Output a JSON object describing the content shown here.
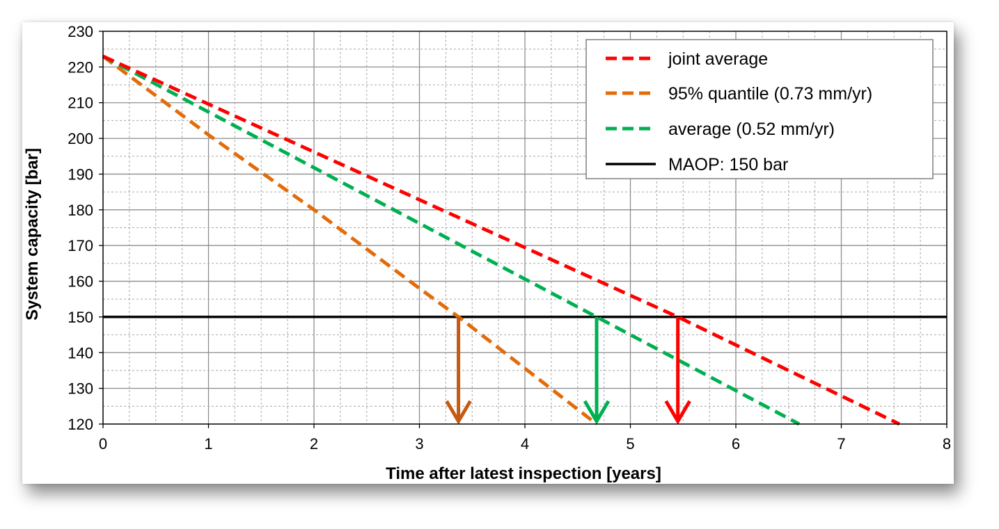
{
  "chart_data": {
    "type": "line",
    "xlabel": "Time after latest inspection [years]",
    "ylabel": "System capacity [bar]",
    "xlim": [
      0,
      8
    ],
    "ylim": [
      120,
      230
    ],
    "x_ticks": [
      "0",
      "1",
      "2",
      "3",
      "4",
      "5",
      "6",
      "7",
      "8"
    ],
    "y_ticks": [
      "120",
      "130",
      "140",
      "150",
      "160",
      "170",
      "180",
      "190",
      "200",
      "210",
      "220",
      "230"
    ],
    "grid": "major solid, minor dashed",
    "legend_position": "top-right",
    "series": [
      {
        "name": "joint average",
        "style": "dashed",
        "color": "#ff0000",
        "x": [
          0,
          5.45,
          7.55
        ],
        "y": [
          223,
          150,
          120
        ]
      },
      {
        "name": "95% quantile (0.73 mm/yr)",
        "style": "dashed",
        "color": "#e26b0a",
        "x": [
          0,
          1,
          2,
          3,
          3.37,
          4.68
        ],
        "y": [
          223,
          201,
          180,
          158,
          150,
          120
        ]
      },
      {
        "name": "average (0.52 mm/yr)",
        "style": "dashed",
        "color": "#00b050",
        "x": [
          0,
          4.68,
          6.6
        ],
        "y": [
          223,
          150,
          120
        ]
      },
      {
        "name": "MAOP: 150 bar",
        "style": "solid",
        "color": "#000000",
        "x": [
          0,
          8
        ],
        "y": [
          150,
          150
        ]
      }
    ],
    "arrows": [
      {
        "color": "#c55a11",
        "x": 3.37,
        "y_from": 150,
        "y_to": 120
      },
      {
        "color": "#00b050",
        "x": 4.68,
        "y_from": 150,
        "y_to": 120
      },
      {
        "color": "#ff0000",
        "x": 5.45,
        "y_from": 150,
        "y_to": 120
      }
    ]
  }
}
